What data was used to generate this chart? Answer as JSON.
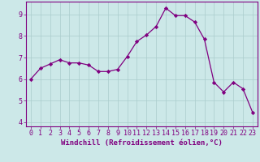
{
  "x": [
    0,
    1,
    2,
    3,
    4,
    5,
    6,
    7,
    8,
    9,
    10,
    11,
    12,
    13,
    14,
    15,
    16,
    17,
    18,
    19,
    20,
    21,
    22,
    23
  ],
  "y": [
    6.0,
    6.5,
    6.7,
    6.9,
    6.75,
    6.75,
    6.65,
    6.35,
    6.35,
    6.45,
    7.05,
    7.75,
    8.05,
    8.45,
    9.3,
    8.95,
    8.95,
    8.65,
    7.85,
    5.85,
    5.4,
    5.85,
    5.55,
    4.45
  ],
  "line_color": "#800080",
  "marker": "D",
  "marker_size": 2.2,
  "bg_color": "#cce8e8",
  "grid_color": "#aacccc",
  "axis_label_color": "#800080",
  "xlabel": "Windchill (Refroidissement éolien,°C)",
  "ylim": [
    3.8,
    9.6
  ],
  "xlim": [
    -0.5,
    23.5
  ],
  "yticks": [
    4,
    5,
    6,
    7,
    8,
    9
  ],
  "xticks": [
    0,
    1,
    2,
    3,
    4,
    5,
    6,
    7,
    8,
    9,
    10,
    11,
    12,
    13,
    14,
    15,
    16,
    17,
    18,
    19,
    20,
    21,
    22,
    23
  ],
  "spine_color": "#800080",
  "tick_color": "#800080",
  "label_fontsize": 6.5,
  "tick_fontsize": 6.0
}
